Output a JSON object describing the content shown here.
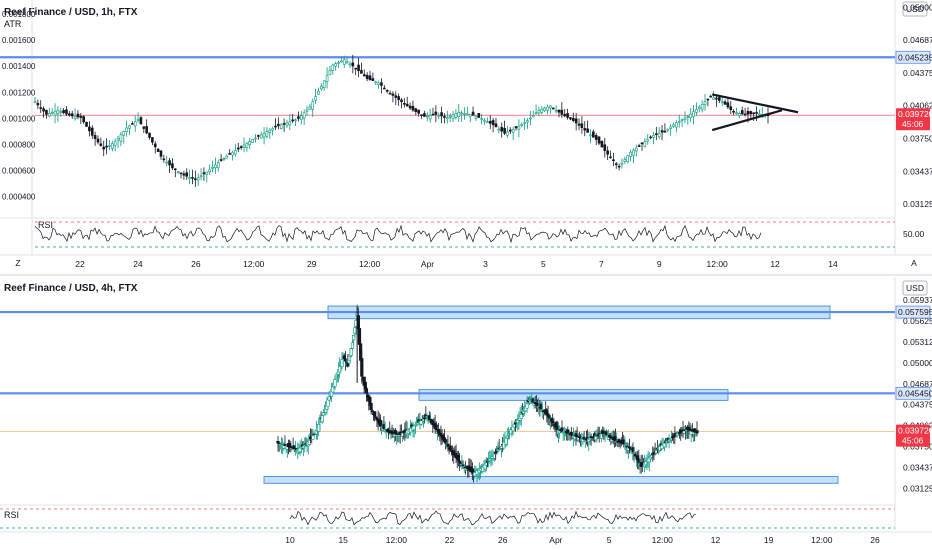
{
  "chart_data": [
    {
      "type": "candlestick",
      "title": "Reef Finance / USD, 1h, FTX",
      "indicator_label": "ATR",
      "currency": "USD",
      "left_ticks": [
        "0.001800",
        "0.001600",
        "0.001400",
        "0.001200",
        "0.001000",
        "0.000800",
        "0.000600",
        "0.000400"
      ],
      "right_ticks": [
        "0.050000",
        "0.046875",
        "0.043750",
        "0.040625",
        "0.037500",
        "0.034375",
        "0.031250"
      ],
      "ylim": [
        0.0305,
        0.0505
      ],
      "x_ticks": [
        "22",
        "24",
        "26",
        "12:00",
        "29",
        "12:00",
        "Apr",
        "3",
        "5",
        "7",
        "9",
        "12:00",
        "12",
        "14"
      ],
      "resistance_level": "0.045235",
      "last_price": "0.039720",
      "countdown": "45:06",
      "pattern": "symmetrical triangle",
      "close_path": [
        [
          0,
          0.041
        ],
        [
          4,
          0.0398
        ],
        [
          8,
          0.0402
        ],
        [
          12,
          0.0397
        ],
        [
          16,
          0.0395
        ],
        [
          20,
          0.0378
        ],
        [
          24,
          0.0365
        ],
        [
          28,
          0.0372
        ],
        [
          32,
          0.0385
        ],
        [
          36,
          0.0393
        ],
        [
          40,
          0.0376
        ],
        [
          44,
          0.0358
        ],
        [
          48,
          0.0347
        ],
        [
          52,
          0.034
        ],
        [
          56,
          0.0336
        ],
        [
          60,
          0.0343
        ],
        [
          64,
          0.0352
        ],
        [
          68,
          0.036
        ],
        [
          72,
          0.0367
        ],
        [
          76,
          0.0374
        ],
        [
          80,
          0.038
        ],
        [
          84,
          0.0386
        ],
        [
          88,
          0.039
        ],
        [
          92,
          0.0394
        ],
        [
          96,
          0.0405
        ],
        [
          100,
          0.0425
        ],
        [
          104,
          0.0445
        ],
        [
          108,
          0.045
        ],
        [
          112,
          0.0442
        ],
        [
          116,
          0.0432
        ],
        [
          120,
          0.0428
        ],
        [
          124,
          0.0418
        ],
        [
          128,
          0.041
        ],
        [
          132,
          0.0402
        ],
        [
          136,
          0.0396
        ],
        [
          140,
          0.0398
        ],
        [
          144,
          0.0395
        ],
        [
          148,
          0.04
        ],
        [
          152,
          0.0398
        ],
        [
          156,
          0.0394
        ],
        [
          160,
          0.0388
        ],
        [
          164,
          0.038
        ],
        [
          168,
          0.0385
        ],
        [
          172,
          0.0392
        ],
        [
          176,
          0.0402
        ],
        [
          180,
          0.0406
        ],
        [
          184,
          0.0398
        ],
        [
          188,
          0.0392
        ],
        [
          192,
          0.0383
        ],
        [
          196,
          0.0374
        ],
        [
          200,
          0.036
        ],
        [
          204,
          0.0348
        ],
        [
          208,
          0.0362
        ],
        [
          212,
          0.037
        ],
        [
          216,
          0.0378
        ],
        [
          220,
          0.0382
        ],
        [
          224,
          0.039
        ],
        [
          228,
          0.0396
        ],
        [
          232,
          0.0405
        ],
        [
          236,
          0.0415
        ],
        [
          240,
          0.041
        ],
        [
          244,
          0.04
        ],
        [
          248,
          0.0398
        ],
        [
          252,
          0.0399
        ],
        [
          256,
          0.0397
        ]
      ],
      "triangle": {
        "upper": [
          [
            240,
            0.0417
          ],
          [
            258,
            0.04
          ]
        ],
        "lower": [
          [
            240,
            0.0383
          ],
          [
            258,
            0.04
          ]
        ]
      },
      "rsi": {
        "label": "RSI",
        "level_label": "50.00"
      }
    },
    {
      "type": "candlestick",
      "title": "Reef Finance / USD, 4h, FTX",
      "currency": "USD",
      "right_ticks": [
        "0.062500",
        "0.059375",
        "0.056250",
        "0.053125",
        "0.050000",
        "0.046875",
        "0.043750",
        "0.040625",
        "0.037500",
        "0.034375",
        "0.031250"
      ],
      "ylim": [
        0.0295,
        0.06
      ],
      "x_ticks": [
        "10",
        "15",
        "12:00",
        "22",
        "26",
        "Apr",
        "5",
        "12:00",
        "12",
        "19",
        "12:00",
        "26"
      ],
      "levels": [
        "0.057595",
        "0.045450"
      ],
      "zones": [
        {
          "from": 0.0566,
          "to": 0.0585
        },
        {
          "from": 0.0444,
          "to": 0.046
        },
        {
          "from": 0.032,
          "to": 0.033
        }
      ],
      "support_level": "0.032500",
      "last_price": "0.039720",
      "countdown": "45:06",
      "close_path": [
        [
          0,
          0.038
        ],
        [
          4,
          0.0375
        ],
        [
          8,
          0.037
        ],
        [
          12,
          0.0378
        ],
        [
          16,
          0.0395
        ],
        [
          20,
          0.043
        ],
        [
          24,
          0.047
        ],
        [
          28,
          0.051
        ],
        [
          30,
          0.0495
        ],
        [
          32,
          0.053
        ],
        [
          34,
          0.0575
        ],
        [
          36,
          0.048
        ],
        [
          40,
          0.043
        ],
        [
          44,
          0.0405
        ],
        [
          48,
          0.0395
        ],
        [
          52,
          0.0392
        ],
        [
          56,
          0.04
        ],
        [
          60,
          0.041
        ],
        [
          64,
          0.042
        ],
        [
          68,
          0.04
        ],
        [
          72,
          0.038
        ],
        [
          76,
          0.036
        ],
        [
          80,
          0.0345
        ],
        [
          84,
          0.0335
        ],
        [
          88,
          0.0345
        ],
        [
          92,
          0.036
        ],
        [
          96,
          0.0375
        ],
        [
          100,
          0.04
        ],
        [
          104,
          0.042
        ],
        [
          108,
          0.0445
        ],
        [
          112,
          0.0435
        ],
        [
          116,
          0.042
        ],
        [
          120,
          0.04
        ],
        [
          124,
          0.0395
        ],
        [
          128,
          0.039
        ],
        [
          132,
          0.0385
        ],
        [
          136,
          0.039
        ],
        [
          140,
          0.0395
        ],
        [
          144,
          0.0385
        ],
        [
          148,
          0.038
        ],
        [
          152,
          0.037
        ],
        [
          156,
          0.0345
        ],
        [
          160,
          0.036
        ],
        [
          164,
          0.0375
        ],
        [
          168,
          0.0385
        ],
        [
          172,
          0.0395
        ],
        [
          176,
          0.04
        ],
        [
          180,
          0.0395
        ]
      ],
      "rsi": {
        "label": "RSI"
      }
    }
  ],
  "scale_buttons": {
    "zoom": "Z",
    "auto": "A"
  }
}
